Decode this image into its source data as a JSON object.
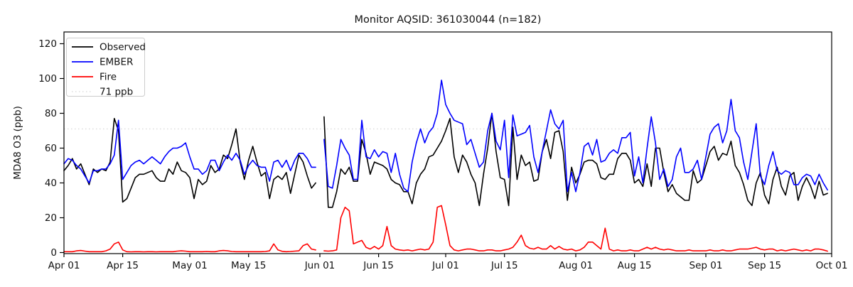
{
  "chart_data": {
    "type": "line",
    "title": "Monitor AQSID: 361030044 (n=182)",
    "xlabel": "",
    "ylabel": "MDA8 O3 (ppb)",
    "ylim": [
      0,
      126
    ],
    "grid": false,
    "n_label": 182,
    "y_ticks": [
      0,
      20,
      40,
      60,
      80,
      100,
      120
    ],
    "x_ticks": [
      {
        "label": "Apr 01",
        "day": 0
      },
      {
        "label": "Apr 15",
        "day": 14
      },
      {
        "label": "May 01",
        "day": 30
      },
      {
        "label": "May 15",
        "day": 44
      },
      {
        "label": "Jun 01",
        "day": 61
      },
      {
        "label": "Jun 15",
        "day": 75
      },
      {
        "label": "Jul 01",
        "day": 91
      },
      {
        "label": "Jul 15",
        "day": 105
      },
      {
        "label": "Aug 01",
        "day": 122
      },
      {
        "label": "Aug 15",
        "day": 136
      },
      {
        "label": "Sep 01",
        "day": 153
      },
      {
        "label": "Sep 15",
        "day": 167
      },
      {
        "label": "Oct 01",
        "day": 183
      }
    ],
    "x_range_days": 183,
    "reference_line": {
      "label": "71 ppb",
      "value": 71,
      "color": "#d8d8d8",
      "style": "dotted"
    },
    "legend": {
      "position": "upper-left",
      "entries": [
        {
          "label": "Observed",
          "color": "#000000",
          "dash": "solid"
        },
        {
          "label": "EMBER",
          "color": "#0000ff",
          "dash": "solid"
        },
        {
          "label": "Fire",
          "color": "#ff0000",
          "dash": "solid"
        },
        {
          "label": "71 ppb",
          "color": "#d8d8d8",
          "dash": "dotted"
        }
      ]
    },
    "series": [
      {
        "name": "Observed",
        "color": "#000000",
        "values": [
          47,
          50,
          54,
          48,
          51,
          45,
          39,
          48,
          46,
          48,
          47,
          52,
          77,
          70,
          29,
          31,
          37,
          43,
          45,
          45,
          46,
          47,
          43,
          41,
          41,
          48,
          45,
          52,
          47,
          46,
          43,
          31,
          42,
          39,
          41,
          50,
          46,
          48,
          56,
          54,
          62,
          71,
          52,
          42,
          53,
          61,
          52,
          44,
          46,
          31,
          42,
          44,
          42,
          46,
          34,
          45,
          56,
          52,
          44,
          37,
          40,
          null,
          78,
          26,
          26,
          35,
          48,
          45,
          49,
          41,
          41,
          65,
          57,
          45,
          52,
          51,
          50,
          48,
          42,
          40,
          39,
          35,
          35,
          28,
          40,
          45,
          48,
          55,
          56,
          60,
          64,
          70,
          77,
          55,
          46,
          56,
          52,
          45,
          40,
          27,
          45,
          60,
          80,
          58,
          43,
          42,
          27,
          72,
          42,
          56,
          50,
          52,
          41,
          42,
          58,
          65,
          54,
          69,
          70,
          58,
          30,
          49,
          40,
          45,
          52,
          53,
          53,
          51,
          43,
          42,
          45,
          45,
          54,
          57,
          57,
          53,
          40,
          42,
          38,
          51,
          38,
          60,
          60,
          46,
          35,
          39,
          34,
          32,
          30,
          30,
          47,
          40,
          42,
          50,
          58,
          61,
          53,
          57,
          56,
          64,
          50,
          46,
          39,
          30,
          27,
          40,
          46,
          33,
          28,
          42,
          49,
          38,
          33,
          44,
          46,
          30,
          38,
          43,
          38,
          31,
          41,
          33,
          34
        ]
      },
      {
        "name": "EMBER",
        "color": "#0000ff",
        "values": [
          51,
          54,
          53,
          50,
          48,
          44,
          40,
          47,
          47,
          48,
          48,
          51,
          56,
          76,
          42,
          46,
          50,
          52,
          53,
          51,
          53,
          55,
          53,
          51,
          55,
          58,
          60,
          60,
          61,
          63,
          55,
          48,
          48,
          45,
          47,
          53,
          53,
          47,
          52,
          56,
          53,
          57,
          53,
          45,
          50,
          53,
          50,
          49,
          49,
          41,
          52,
          53,
          49,
          53,
          47,
          53,
          57,
          57,
          54,
          49,
          49,
          null,
          65,
          38,
          37,
          50,
          65,
          60,
          56,
          42,
          42,
          76,
          55,
          54,
          59,
          55,
          58,
          57,
          46,
          57,
          45,
          37,
          35,
          52,
          63,
          71,
          63,
          69,
          72,
          80,
          99,
          85,
          80,
          76,
          75,
          74,
          62,
          65,
          57,
          49,
          52,
          70,
          80,
          64,
          59,
          76,
          43,
          79,
          67,
          68,
          69,
          73,
          55,
          46,
          58,
          70,
          82,
          74,
          71,
          76,
          35,
          46,
          35,
          46,
          61,
          63,
          56,
          65,
          52,
          53,
          57,
          59,
          57,
          66,
          66,
          69,
          44,
          55,
          40,
          60,
          78,
          63,
          42,
          48,
          38,
          42,
          55,
          60,
          46,
          46,
          48,
          53,
          42,
          55,
          68,
          72,
          74,
          63,
          70,
          88,
          70,
          66,
          52,
          42,
          58,
          74,
          44,
          39,
          50,
          58,
          47,
          45,
          47,
          46,
          39,
          39,
          43,
          45,
          44,
          39,
          45,
          40,
          36
        ]
      },
      {
        "name": "Fire",
        "color": "#ff0000",
        "values": [
          0.5,
          0.5,
          0.5,
          1,
          1.2,
          0.8,
          0.5,
          0.5,
          0.5,
          0.5,
          1,
          2,
          5,
          6,
          1.5,
          0.5,
          0.4,
          0.5,
          0.5,
          0.4,
          0.5,
          0.5,
          0.4,
          0.5,
          0.5,
          0.5,
          0.5,
          0.8,
          1,
          0.8,
          0.5,
          0.5,
          0.5,
          0.5,
          0.6,
          0.5,
          0.5,
          1,
          1.2,
          1,
          0.6,
          0.5,
          0.5,
          0.5,
          0.5,
          0.5,
          0.5,
          0.5,
          0.6,
          1,
          5,
          1.5,
          0.7,
          0.5,
          0.6,
          0.8,
          1,
          4,
          5,
          2,
          1.5,
          null,
          1,
          0.8,
          1,
          1.5,
          20,
          26,
          24,
          5,
          6,
          7,
          3,
          2,
          3.5,
          2,
          4,
          15,
          4,
          2,
          1.5,
          1.2,
          1.5,
          1,
          1.5,
          2,
          1.5,
          2,
          6,
          26,
          27,
          16,
          4,
          1.5,
          1,
          1.5,
          2,
          2,
          1.5,
          1,
          1,
          1.5,
          1.5,
          1,
          1,
          1.5,
          2,
          3,
          6,
          10,
          4,
          2.5,
          2,
          3,
          2,
          2,
          4,
          2,
          3.5,
          2,
          1.5,
          2,
          1,
          1.5,
          3,
          6,
          6,
          4,
          2,
          14,
          2,
          1,
          1.5,
          1,
          1,
          1.5,
          1,
          1,
          2,
          3,
          2,
          3,
          2,
          1.5,
          2,
          1.5,
          1,
          1,
          1,
          1.5,
          1,
          1,
          1,
          1,
          1.5,
          1,
          1,
          1.5,
          1,
          1,
          1.5,
          2,
          2,
          2,
          2.5,
          3,
          2,
          1.5,
          2,
          2,
          1,
          1.5,
          1,
          1.5,
          2,
          1.5,
          1,
          1.5,
          1,
          2,
          2,
          1.5,
          0.8
        ]
      }
    ]
  }
}
